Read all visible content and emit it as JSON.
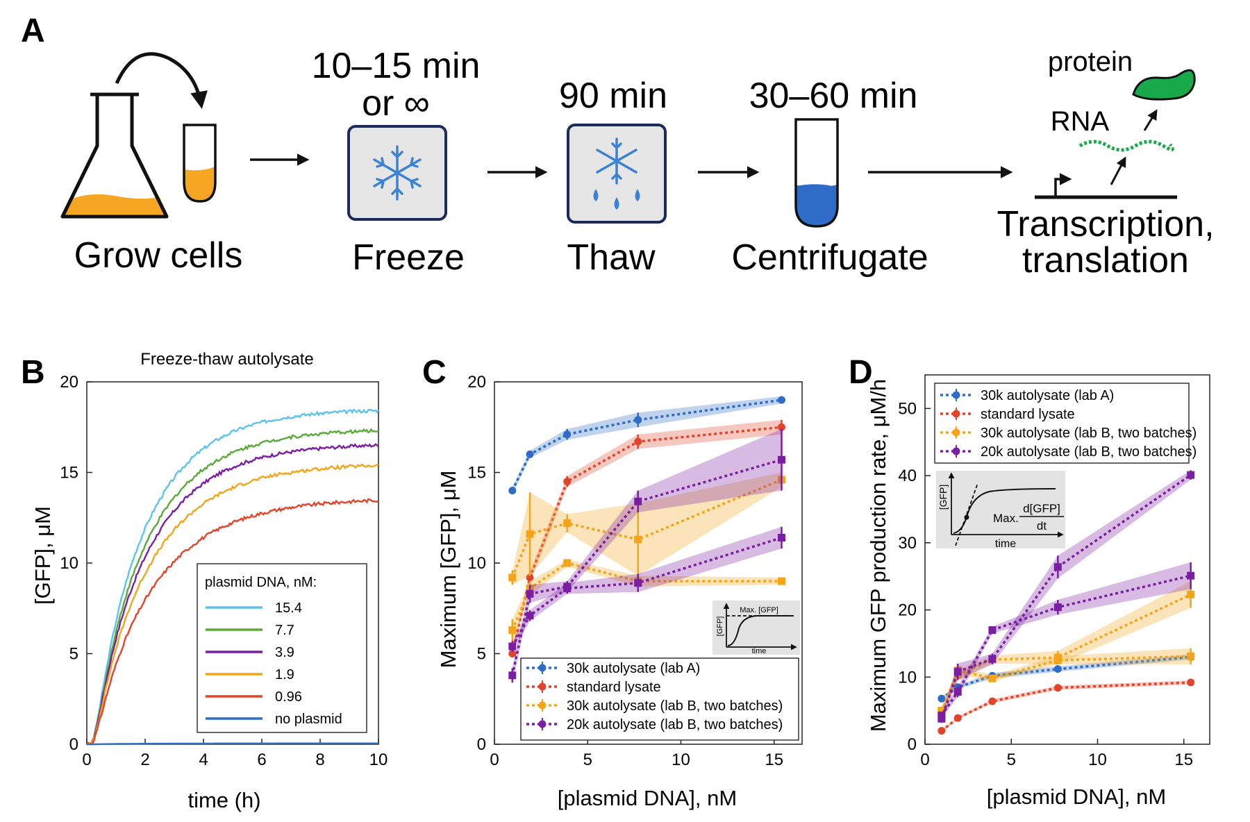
{
  "panel_a": {
    "letter": "A",
    "steps": [
      {
        "label": "Grow cells",
        "time": ""
      },
      {
        "label": "Freeze",
        "time_line1": "10–15 min",
        "time_line2": "or ∞"
      },
      {
        "label": "Thaw",
        "time": "90 min"
      },
      {
        "label": "Centrifugate",
        "time": "30–60 min"
      },
      {
        "label_line1": "Transcription,",
        "label_line2": "translation",
        "protein": "protein",
        "rna": "RNA"
      }
    ],
    "colors": {
      "culture": "#f5a623",
      "lysate": "#2f6cc7",
      "protein": "#19a84a",
      "snowflake": "#3b82d6"
    }
  },
  "chart_data": [
    {
      "panel": "B",
      "type": "line",
      "title": "Freeze-thaw autolysate",
      "xlabel": "time (h)",
      "ylabel": "[GFP], μM",
      "xlim": [
        0,
        10
      ],
      "ylim": [
        0,
        20
      ],
      "xticks": [
        0,
        2,
        4,
        6,
        8,
        10
      ],
      "yticks": [
        0,
        5,
        10,
        15,
        20
      ],
      "legend_title": "plasmid DNA, nM:",
      "legend_position": "bottom-right",
      "series": [
        {
          "name": "15.4",
          "color": "#5bc3ec",
          "plateau": 18.5,
          "k": 0.55
        },
        {
          "name": "7.7",
          "color": "#5aaa3a",
          "plateau": 17.4,
          "k": 0.53
        },
        {
          "name": "3.9",
          "color": "#7b1fa2",
          "plateau": 16.6,
          "k": 0.52
        },
        {
          "name": "1.9",
          "color": "#f2a51a",
          "plateau": 15.5,
          "k": 0.5
        },
        {
          "name": "0.96",
          "color": "#e0452b",
          "plateau": 13.6,
          "k": 0.47
        },
        {
          "name": "no plasmid",
          "color": "#2f6cc7",
          "plateau": 0.05,
          "k": 0.5
        }
      ]
    },
    {
      "panel": "C",
      "type": "line",
      "xlabel": "[plasmid DNA], nM",
      "ylabel": "Maximum [GFP], μM",
      "xlim": [
        0,
        16.5
      ],
      "ylim": [
        0,
        20
      ],
      "xticks": [
        0,
        5,
        10,
        15
      ],
      "yticks": [
        0,
        5,
        10,
        15,
        20
      ],
      "legend_position": "bottom-right",
      "inset": {
        "ylabel": "[GFP]",
        "xlabel": "time",
        "annotation": "Max. [GFP]"
      },
      "x": [
        0.96,
        1.9,
        3.9,
        7.7,
        15.4
      ],
      "series": [
        {
          "name": "30k autolysate (lab A)",
          "color": "#2f6cc7",
          "marker": "circle",
          "batches": [
            {
              "y": [
                14.0,
                16.0,
                17.1,
                17.9,
                19.0
              ],
              "err": [
                0.2,
                0.2,
                0.3,
                0.4,
                0.2
              ]
            }
          ]
        },
        {
          "name": "standard lysate",
          "color": "#e0452b",
          "marker": "circle",
          "batches": [
            {
              "y": [
                5.0,
                9.2,
                14.5,
                16.7,
                17.5
              ],
              "err": [
                0.2,
                0.3,
                0.3,
                0.4,
                0.4
              ]
            }
          ]
        },
        {
          "name": "30k autolysate (lab B, two batches)",
          "color": "#f2a51a",
          "marker": "square",
          "batches": [
            {
              "y": [
                9.2,
                11.6,
                12.2,
                11.3,
                14.6
              ],
              "err": [
                0.4,
                2.3,
                0.5,
                2.0,
                0.4
              ]
            },
            {
              "y": [
                6.3,
                8.6,
                10.0,
                9.0,
                9.0
              ],
              "err": [
                0.6,
                0.4,
                0.2,
                0.3,
                0.2
              ]
            }
          ]
        },
        {
          "name": "20k autolysate (lab B, two batches)",
          "color": "#7b1fa2",
          "marker": "square",
          "batches": [
            {
              "y": [
                3.8,
                8.3,
                8.7,
                13.4,
                15.7
              ],
              "err": [
                0.4,
                0.5,
                0.3,
                0.6,
                1.7
              ]
            },
            {
              "y": [
                5.4,
                7.1,
                8.6,
                8.9,
                11.4
              ],
              "err": [
                0.3,
                0.3,
                0.3,
                0.5,
                0.6
              ]
            }
          ]
        }
      ]
    },
    {
      "panel": "D",
      "type": "line",
      "xlabel": "[plasmid DNA], nM",
      "ylabel": "Maximum GFP production rate, μM/h",
      "xlim": [
        0,
        16.5
      ],
      "ylim": [
        0,
        55
      ],
      "xticks": [
        0,
        5,
        10,
        15
      ],
      "yticks": [
        0,
        10,
        20,
        30,
        40,
        50
      ],
      "legend_position": "top-left",
      "inset": {
        "ylabel": "[GFP]",
        "xlabel": "time",
        "annotation_prefix": "Max.",
        "annotation_numerator": "d[GFP]",
        "annotation_denominator": "dt"
      },
      "x": [
        0.96,
        1.9,
        3.9,
        7.7,
        15.4
      ],
      "series": [
        {
          "name": "30k autolysate (lab A)",
          "color": "#2f6cc7",
          "marker": "circle",
          "batches": [
            {
              "y": [
                6.8,
                8.5,
                10.2,
                11.2,
                13.0
              ],
              "err": [
                0.3,
                0.3,
                0.4,
                0.4,
                0.4
              ]
            }
          ]
        },
        {
          "name": "standard lysate",
          "color": "#e0452b",
          "marker": "circle",
          "batches": [
            {
              "y": [
                2.0,
                3.9,
                6.4,
                8.4,
                9.2
              ],
              "err": [
                0.2,
                0.2,
                0.3,
                0.3,
                0.3
              ]
            }
          ]
        },
        {
          "name": "30k autolysate (lab B, two batches)",
          "color": "#f2a51a",
          "marker": "square",
          "batches": [
            {
              "y": [
                5.0,
                10.3,
                12.6,
                12.9,
                22.3
              ],
              "err": [
                0.6,
                0.8,
                0.6,
                1.0,
                2.0
              ]
            },
            {
              "y": [
                4.8,
                11.0,
                9.8,
                12.5,
                13.1
              ],
              "err": [
                0.5,
                0.6,
                0.5,
                0.6,
                1.2
              ]
            }
          ]
        },
        {
          "name": "20k autolysate (lab B, two batches)",
          "color": "#7b1fa2",
          "marker": "square",
          "batches": [
            {
              "y": [
                3.8,
                10.8,
                12.7,
                26.4,
                40.1
              ],
              "err": [
                0.6,
                1.2,
                0.8,
                1.7,
                0.7
              ]
            },
            {
              "y": [
                4.3,
                7.8,
                17.0,
                20.4,
                25.1
              ],
              "err": [
                0.4,
                0.8,
                0.5,
                1.1,
                2.0
              ]
            }
          ]
        }
      ]
    }
  ]
}
